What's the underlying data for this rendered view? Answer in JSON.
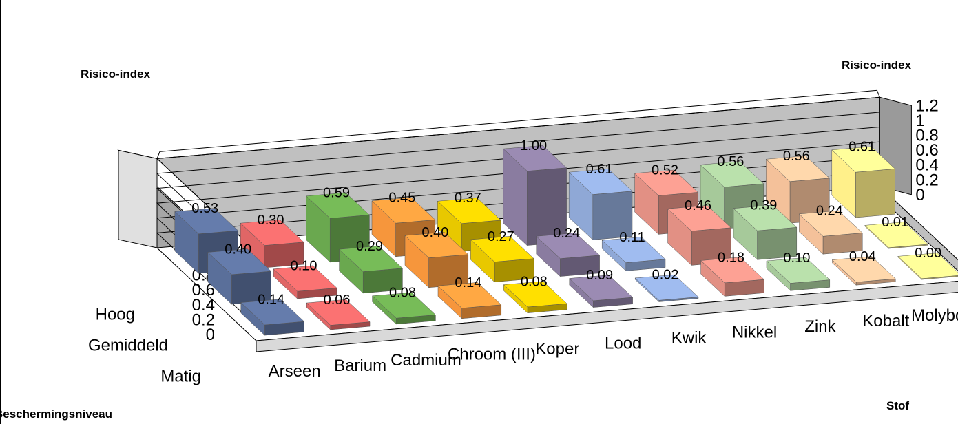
{
  "chart_data": {
    "type": "bar",
    "title": "",
    "ylabel_left": "Risico-index",
    "ylabel_right": "Risico-index",
    "xlabel": "Beschermingsniveau",
    "zlabel": "Stof",
    "ylim": [
      0,
      1.2
    ],
    "yticks": [
      "0",
      "0.2",
      "0.4",
      "0.6",
      "0.8",
      "1",
      "1.2"
    ],
    "levels": [
      "Hoog",
      "Gemiddeld",
      "Matig"
    ],
    "substances": [
      "Arseen",
      "Barium",
      "Cadmium",
      "Chroom (III)",
      "Koper",
      "Lood",
      "Kwik",
      "Nikkel",
      "Zink",
      "Kobalt",
      "Molybdeen"
    ],
    "colors": [
      "#5a6f9a",
      "#e06666",
      "#6aa84f",
      "#f6963c",
      "#e8c800",
      "#8a7ca0",
      "#8fa8d6",
      "#e29084",
      "#a6c99a",
      "#f4c19a",
      "#fff08a"
    ],
    "series": [
      {
        "name": "Hoog",
        "values": [
          0.53,
          0.3,
          0.59,
          0.45,
          0.37,
          1.0,
          0.61,
          0.52,
          0.56,
          0.56,
          0.61
        ]
      },
      {
        "name": "Gemiddeld",
        "values": [
          0.4,
          0.1,
          0.29,
          0.4,
          0.27,
          0.24,
          0.11,
          0.46,
          0.39,
          0.24,
          0.01
        ]
      },
      {
        "name": "Matig",
        "values": [
          0.14,
          0.06,
          0.08,
          0.14,
          0.08,
          0.09,
          0.02,
          0.18,
          0.1,
          0.04,
          0.0
        ]
      }
    ],
    "grid": true,
    "legend": "none"
  }
}
